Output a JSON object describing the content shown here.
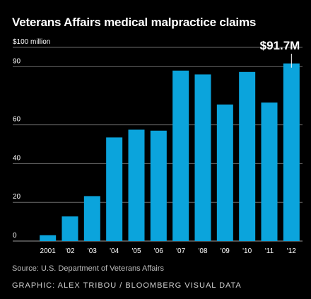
{
  "chart_data": {
    "type": "bar",
    "title": "Veterans Affairs medical malpractice claims",
    "categories": [
      "2001",
      "'02",
      "'03",
      "'04",
      "'05",
      "'06",
      "'07",
      "'08",
      "'09",
      "'10",
      "'11",
      "'12"
    ],
    "values": [
      3,
      12.7,
      23.2,
      53.5,
      57.5,
      57,
      88,
      86,
      70.5,
      87.3,
      71.5,
      91.7
    ],
    "ylim": [
      0,
      100
    ],
    "yticks": [
      0,
      20,
      40,
      60,
      90
    ],
    "ytick_labels": {
      "0": "0",
      "20": "20",
      "40": "40",
      "60": "60",
      "90": "90",
      "100": "$100 million"
    },
    "gridlines": [
      0,
      20,
      40,
      60,
      90,
      100
    ],
    "grid": true,
    "annotation": {
      "category": "'12",
      "label": "$91.7M"
    },
    "bar_color": "#0ba4dc",
    "source": "Source: U.S. Department of Veterans Affairs",
    "credit": "GRAPHIC: ALEX TRIBOU / BLOOMBERG VISUAL DATA"
  }
}
